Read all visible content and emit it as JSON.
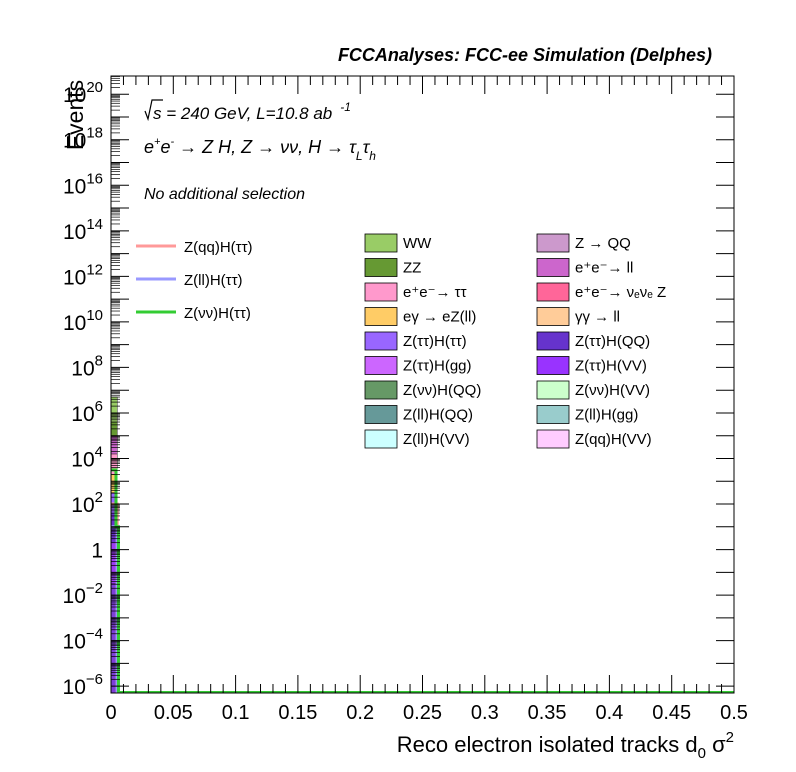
{
  "header": {
    "title": "FCCAnalyses: FCC-ee Simulation (Delphes)"
  },
  "annotations": {
    "sqrt_s": "s",
    "energy_lumi": " = 240 GeV, L=10.8 ab",
    "lumi_exp": "-1",
    "process": {
      "e": "e",
      "plus": "+",
      "minus": "-",
      "rest1": " → Z H, Z  → νν, H  → τ",
      "sub_L": "L",
      "tau2": "τ",
      "sub_h": "h"
    },
    "selection": "No additional selection"
  },
  "chart_data": {
    "type": "bar",
    "xlabel": "Reco electron isolated tracks d",
    "xlabel_sub": "0",
    "xlabel_tail": " σ",
    "xlabel_sup": "2",
    "ylabel": "Events",
    "xlim": [
      0,
      0.5
    ],
    "ylim_log10": [
      -6.3,
      20.8
    ],
    "y_scale": "log",
    "x_ticks": [
      "0",
      "0.05",
      "0.1",
      "0.15",
      "0.2",
      "0.25",
      "0.3",
      "0.35",
      "0.4",
      "0.45",
      "0.5"
    ],
    "y_tick_labels": [
      {
        "exp": 20,
        "base": "10",
        "sup": "20"
      },
      {
        "exp": 18,
        "base": "10",
        "sup": "18"
      },
      {
        "exp": 16,
        "base": "10",
        "sup": "16"
      },
      {
        "exp": 14,
        "base": "10",
        "sup": "14"
      },
      {
        "exp": 12,
        "base": "10",
        "sup": "12"
      },
      {
        "exp": 10,
        "base": "10",
        "sup": "10"
      },
      {
        "exp": 8,
        "base": "10",
        "sup": "8"
      },
      {
        "exp": 6,
        "base": "10",
        "sup": "6"
      },
      {
        "exp": 4,
        "base": "10",
        "sup": "4"
      },
      {
        "exp": 2,
        "base": "10",
        "sup": "2"
      },
      {
        "exp": 0,
        "base": "1",
        "sup": ""
      },
      {
        "exp": -2,
        "base": "10",
        "sup": "−2"
      },
      {
        "exp": -4,
        "base": "10",
        "sup": "−4"
      },
      {
        "exp": -6,
        "base": "10",
        "sup": "−6"
      }
    ],
    "stack_bin": [
      0.0,
      0.005
    ],
    "stack_segments": [
      {
        "name": "Z(qq)H(VV)",
        "color": "#7c3fd6",
        "from_log": -6.3,
        "to_log": -1.5
      },
      {
        "name": "Z(ττ)H(VV)",
        "color": "#9b3cf2",
        "from_log": -1.5,
        "to_log": 0.3
      },
      {
        "name": "Z(ττ)H(QQ)",
        "color": "#6a32c9",
        "from_log": 0.3,
        "to_log": 1.6
      },
      {
        "name": "Z(ττ)H(ττ)",
        "color": "#9966ff",
        "from_log": 1.6,
        "to_log": 2.5
      },
      {
        "name": "eγ → eZ(ll)",
        "color": "#ffcc66",
        "from_log": 2.5,
        "to_log": 3.3
      },
      {
        "name": "e+e- → ττ",
        "color": "#ff99cc",
        "from_log": 3.3,
        "to_log": 4.2
      },
      {
        "name": "e+e- → ll",
        "color": "#cc66cc",
        "from_log": 4.2,
        "to_log": 5.0
      },
      {
        "name": "ZZ",
        "color": "#669933",
        "from_log": 5.0,
        "to_log": 5.6
      },
      {
        "name": "WW",
        "color": "#99cc66",
        "from_log": 5.6,
        "to_log": 6.7
      }
    ],
    "line_series": [
      {
        "name": "Z(qq)H(ττ)",
        "color": "#ff9999",
        "first_bin_log10": 2.0,
        "bin_edges": [
          0.0,
          0.005,
          0.01
        ]
      },
      {
        "name": "Z(ll)H(ττ)",
        "color": "#9999ff",
        "first_bin_log10": 1.0,
        "bin_edges": [
          0.0,
          0.005,
          0.01
        ]
      },
      {
        "name": "Z(νν)H(ττ)",
        "color": "#33cc33",
        "steps": [
          [
            0.0,
            3.5
          ],
          [
            0.004,
            3.5
          ],
          [
            0.004,
            1.0
          ],
          [
            0.006,
            1.0
          ],
          [
            0.006,
            -6.3
          ]
        ]
      }
    ],
    "legend_lines": [
      {
        "label": "Z(qq)H(ττ)",
        "color": "#ff9999"
      },
      {
        "label": "Z(ll)H(ττ)",
        "color": "#9999ff"
      },
      {
        "label": "Z(νν)H(ττ)",
        "color": "#33cc33"
      }
    ],
    "legend_fill_col1": [
      {
        "label": "WW",
        "color": "#99cc66"
      },
      {
        "label": "ZZ",
        "color": "#669933"
      },
      {
        "label": "e⁺e⁻→ ττ",
        "color": "#ff99cc"
      },
      {
        "label": "eγ → eZ(ll)",
        "color": "#ffcc66"
      },
      {
        "label": "Z(ττ)H(ττ)",
        "color": "#9966ff"
      },
      {
        "label": "Z(ττ)H(gg)",
        "color": "#cc66ff"
      },
      {
        "label": "Z(νν)H(QQ)",
        "color": "#669966"
      },
      {
        "label": "Z(ll)H(QQ)",
        "color": "#669999"
      },
      {
        "label": "Z(ll)H(VV)",
        "color": "#ccffff"
      }
    ],
    "legend_fill_col2": [
      {
        "label": "Z → QQ",
        "color": "#cc99cc"
      },
      {
        "label": "e⁺e⁻→ ll",
        "color": "#cc66cc"
      },
      {
        "label": "e⁺e⁻→ νₑνₑ Z",
        "color": "#ff6699"
      },
      {
        "label": "γγ → ll",
        "color": "#ffcc99"
      },
      {
        "label": "Z(ττ)H(QQ)",
        "color": "#6633cc"
      },
      {
        "label": "Z(ττ)H(VV)",
        "color": "#9933ff"
      },
      {
        "label": "Z(νν)H(VV)",
        "color": "#ccffcc"
      },
      {
        "label": "Z(ll)H(gg)",
        "color": "#99cccc"
      },
      {
        "label": "Z(qq)H(VV)",
        "color": "#ffccff"
      }
    ]
  }
}
